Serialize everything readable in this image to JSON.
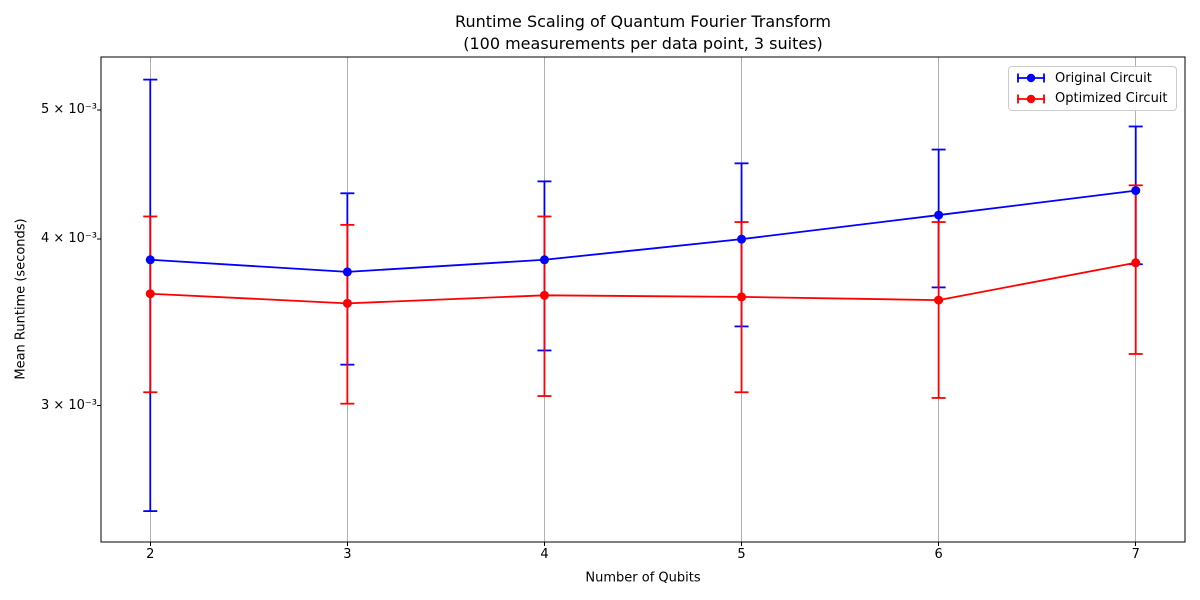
{
  "chart_data": {
    "type": "line",
    "title": "Runtime Scaling of Quantum Fourier Transform",
    "subtitle": "(100 measurements per data point, 3 suites)",
    "xlabel": "Number of Qubits",
    "ylabel": "Mean Runtime (seconds)",
    "x": [
      2,
      3,
      4,
      5,
      6,
      7
    ],
    "x_tick_labels": [
      "2",
      "3",
      "4",
      "5",
      "6",
      "7"
    ],
    "xlim": [
      1.75,
      7.25
    ],
    "y_scale": "log",
    "ylim": [
      0.00237,
      0.00548
    ],
    "y_ticks": [
      {
        "value": 0.005,
        "label": "5 × 10⁻³"
      },
      {
        "value": 0.004,
        "label": "4 × 10⁻³"
      },
      {
        "value": 0.003,
        "label": "3 × 10⁻³"
      }
    ],
    "grid": "vertical-major-only",
    "grid_color": "#b0b0b0",
    "legend_position": "upper right",
    "series": [
      {
        "name": "Original Circuit",
        "color": "#0000ff",
        "marker": "circle-with-errorbars",
        "means": [
          0.00386,
          0.00378,
          0.00386,
          0.004,
          0.00417,
          0.00435
        ],
        "err_upper": [
          0.00527,
          0.00433,
          0.00442,
          0.00456,
          0.00467,
          0.00486
        ],
        "err_lower": [
          0.0025,
          0.00322,
          0.0033,
          0.00344,
          0.00368,
          0.00383
        ]
      },
      {
        "name": "Optimized Circuit",
        "color": "#ff0000",
        "marker": "circle-with-errorbars",
        "means": [
          0.00364,
          0.00358,
          0.00363,
          0.00362,
          0.0036,
          0.00384
        ],
        "err_upper": [
          0.00416,
          0.0041,
          0.00416,
          0.00412,
          0.00412,
          0.00439
        ],
        "err_lower": [
          0.00307,
          0.00301,
          0.00305,
          0.00307,
          0.00304,
          0.00328
        ]
      }
    ]
  }
}
